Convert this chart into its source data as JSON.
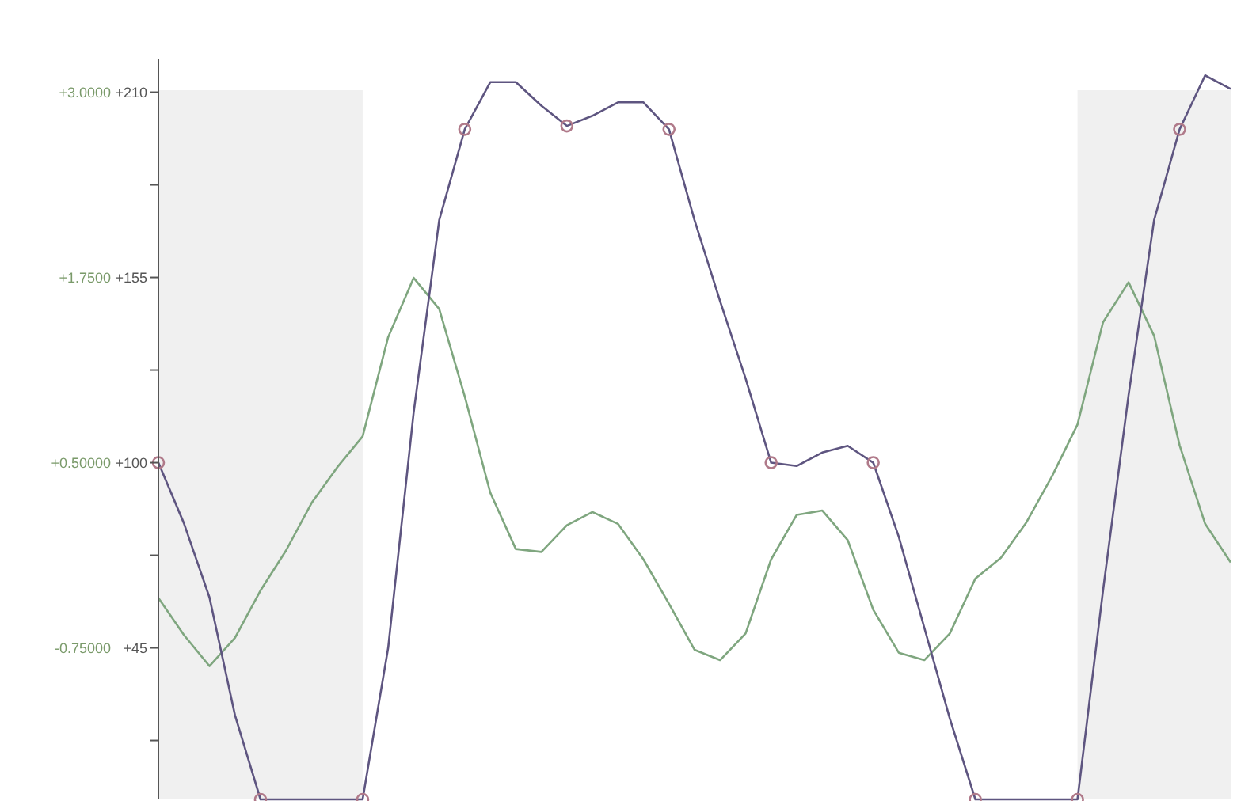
{
  "chart_data": {
    "type": "line",
    "ylim": [
      0,
      220
    ],
    "y2lim": [
      -1.77,
      3.23
    ],
    "tick_labels": "y",
    "categories": [
      null,
      null,
      null,
      null,
      null,
      null,
      null,
      null,
      null,
      null,
      null,
      null,
      null,
      null,
      null,
      null,
      null,
      null,
      null,
      null,
      null,
      null,
      null,
      null,
      null,
      null,
      null,
      null,
      null,
      null,
      null,
      null,
      null,
      null,
      null,
      null,
      null,
      null,
      null,
      null,
      null,
      null,
      null
    ],
    "yticks": [
      {
        "value": 17.5,
        "label": null
      },
      {
        "value": 45,
        "label": "+45"
      },
      {
        "value": 72.5,
        "label": null
      },
      {
        "value": 100,
        "label": "+100"
      },
      {
        "value": 127.5,
        "label": null
      },
      {
        "value": 155,
        "label": "+155"
      },
      {
        "value": 182.5,
        "label": null
      },
      {
        "value": 210,
        "label": "+210"
      }
    ],
    "y2ticks": [
      {
        "value": -0.75,
        "label": "-0.75000"
      },
      {
        "value": 0.5,
        "label": "+0.50000"
      },
      {
        "value": 1.75,
        "label": "+1.7500"
      },
      {
        "value": 3,
        "label": "+3.0000"
      }
    ],
    "series": [
      {
        "color": "#7fa67f",
        "axis": "y2",
        "values": [
          -0.41,
          -0.66,
          -0.87,
          -0.68,
          -0.36,
          -0.09,
          0.23,
          0.47,
          0.68,
          1.35,
          1.75,
          1.54,
          0.95,
          0.3,
          -0.08,
          -0.1,
          0.08,
          0.17,
          0.09,
          -0.15,
          -0.45,
          -0.76,
          -0.83,
          -0.65,
          -0.15,
          0.15,
          0.18,
          -0.02,
          -0.49,
          -0.78,
          -0.83,
          -0.65,
          -0.28,
          -0.14,
          0.1,
          0.41,
          0.76,
          1.45,
          1.72,
          1.36,
          0.62,
          0.09,
          -0.17
        ]
      },
      {
        "color": "#5e5580",
        "axis": "y",
        "values": [
          100,
          82,
          60,
          25,
          0,
          0,
          0,
          0,
          0,
          45,
          115,
          172,
          199,
          213,
          213,
          206,
          200,
          203,
          207,
          207,
          199,
          172,
          148,
          125,
          100,
          99,
          103,
          105,
          100,
          78,
          51,
          24,
          0,
          0,
          0,
          0,
          0,
          62,
          120,
          172,
          199,
          215,
          211
        ]
      }
    ]
  }
}
